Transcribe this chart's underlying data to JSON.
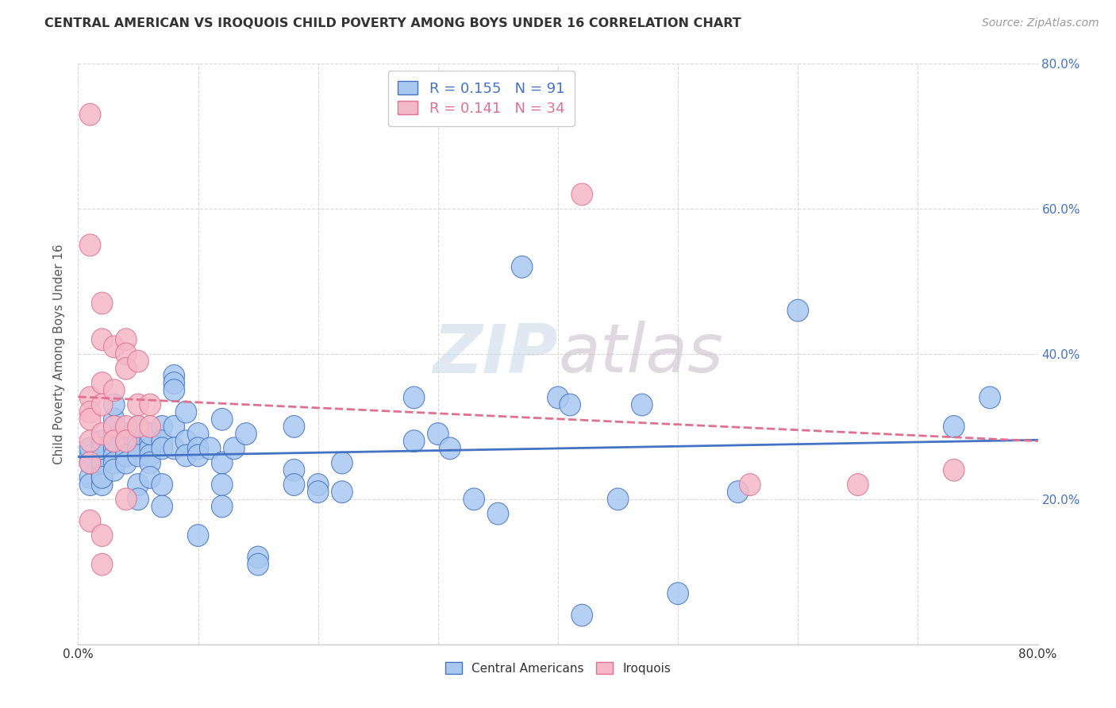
{
  "title": "CENTRAL AMERICAN VS IROQUOIS CHILD POVERTY AMONG BOYS UNDER 16 CORRELATION CHART",
  "source": "Source: ZipAtlas.com",
  "ylabel": "Child Poverty Among Boys Under 16",
  "xlim": [
    0.0,
    0.8
  ],
  "ylim": [
    0.0,
    0.8
  ],
  "xticks": [
    0.0,
    0.1,
    0.2,
    0.3,
    0.4,
    0.5,
    0.6,
    0.7,
    0.8
  ],
  "yticks": [
    0.0,
    0.2,
    0.4,
    0.6,
    0.8
  ],
  "xtick_labels": [
    "0.0%",
    "",
    "",
    "",
    "",
    "",
    "",
    "",
    "80.0%"
  ],
  "ytick_labels_left": [
    "",
    "",
    "",
    "",
    ""
  ],
  "ytick_labels_right": [
    "",
    "20.0%",
    "40.0%",
    "60.0%",
    "80.0%"
  ],
  "background_color": "#ffffff",
  "grid_color": "#d8d8d8",
  "watermark": "ZIPatlas",
  "color_blue": "#a8c8f0",
  "color_pink": "#f5b8c8",
  "line_color_blue": "#4472C4",
  "line_color_pink": "#E07090",
  "tick_color_right": "#4472C4",
  "central_americans": [
    [
      0.01,
      0.26
    ],
    [
      0.01,
      0.23
    ],
    [
      0.01,
      0.22
    ],
    [
      0.01,
      0.27
    ],
    [
      0.01,
      0.25
    ],
    [
      0.02,
      0.28
    ],
    [
      0.02,
      0.24
    ],
    [
      0.02,
      0.23
    ],
    [
      0.02,
      0.26
    ],
    [
      0.02,
      0.25
    ],
    [
      0.02,
      0.27
    ],
    [
      0.02,
      0.22
    ],
    [
      0.02,
      0.23
    ],
    [
      0.03,
      0.29
    ],
    [
      0.03,
      0.27
    ],
    [
      0.03,
      0.26
    ],
    [
      0.03,
      0.25
    ],
    [
      0.03,
      0.24
    ],
    [
      0.03,
      0.28
    ],
    [
      0.03,
      0.3
    ],
    [
      0.03,
      0.31
    ],
    [
      0.03,
      0.33
    ],
    [
      0.04,
      0.27
    ],
    [
      0.04,
      0.29
    ],
    [
      0.04,
      0.26
    ],
    [
      0.04,
      0.28
    ],
    [
      0.04,
      0.27
    ],
    [
      0.04,
      0.26
    ],
    [
      0.04,
      0.25
    ],
    [
      0.05,
      0.29
    ],
    [
      0.05,
      0.28
    ],
    [
      0.05,
      0.27
    ],
    [
      0.05,
      0.26
    ],
    [
      0.05,
      0.3
    ],
    [
      0.05,
      0.22
    ],
    [
      0.05,
      0.2
    ],
    [
      0.06,
      0.28
    ],
    [
      0.06,
      0.27
    ],
    [
      0.06,
      0.26
    ],
    [
      0.06,
      0.29
    ],
    [
      0.06,
      0.25
    ],
    [
      0.06,
      0.23
    ],
    [
      0.07,
      0.3
    ],
    [
      0.07,
      0.28
    ],
    [
      0.07,
      0.27
    ],
    [
      0.07,
      0.22
    ],
    [
      0.07,
      0.19
    ],
    [
      0.08,
      0.37
    ],
    [
      0.08,
      0.36
    ],
    [
      0.08,
      0.35
    ],
    [
      0.08,
      0.3
    ],
    [
      0.08,
      0.27
    ],
    [
      0.09,
      0.32
    ],
    [
      0.09,
      0.28
    ],
    [
      0.09,
      0.26
    ],
    [
      0.1,
      0.29
    ],
    [
      0.1,
      0.27
    ],
    [
      0.1,
      0.26
    ],
    [
      0.1,
      0.15
    ],
    [
      0.11,
      0.27
    ],
    [
      0.12,
      0.31
    ],
    [
      0.12,
      0.25
    ],
    [
      0.12,
      0.22
    ],
    [
      0.12,
      0.19
    ],
    [
      0.13,
      0.27
    ],
    [
      0.14,
      0.29
    ],
    [
      0.15,
      0.12
    ],
    [
      0.15,
      0.11
    ],
    [
      0.18,
      0.3
    ],
    [
      0.18,
      0.24
    ],
    [
      0.18,
      0.22
    ],
    [
      0.2,
      0.22
    ],
    [
      0.2,
      0.21
    ],
    [
      0.22,
      0.25
    ],
    [
      0.22,
      0.21
    ],
    [
      0.28,
      0.34
    ],
    [
      0.28,
      0.28
    ],
    [
      0.3,
      0.29
    ],
    [
      0.31,
      0.27
    ],
    [
      0.33,
      0.2
    ],
    [
      0.35,
      0.18
    ],
    [
      0.37,
      0.52
    ],
    [
      0.4,
      0.34
    ],
    [
      0.41,
      0.33
    ],
    [
      0.42,
      0.04
    ],
    [
      0.45,
      0.2
    ],
    [
      0.47,
      0.33
    ],
    [
      0.5,
      0.07
    ],
    [
      0.55,
      0.21
    ],
    [
      0.6,
      0.46
    ],
    [
      0.73,
      0.3
    ],
    [
      0.76,
      0.34
    ]
  ],
  "iroquois": [
    [
      0.01,
      0.73
    ],
    [
      0.01,
      0.55
    ],
    [
      0.01,
      0.34
    ],
    [
      0.01,
      0.32
    ],
    [
      0.01,
      0.31
    ],
    [
      0.01,
      0.28
    ],
    [
      0.01,
      0.25
    ],
    [
      0.01,
      0.17
    ],
    [
      0.02,
      0.47
    ],
    [
      0.02,
      0.42
    ],
    [
      0.02,
      0.36
    ],
    [
      0.02,
      0.33
    ],
    [
      0.02,
      0.29
    ],
    [
      0.02,
      0.15
    ],
    [
      0.02,
      0.11
    ],
    [
      0.03,
      0.41
    ],
    [
      0.03,
      0.35
    ],
    [
      0.03,
      0.3
    ],
    [
      0.03,
      0.28
    ],
    [
      0.04,
      0.42
    ],
    [
      0.04,
      0.4
    ],
    [
      0.04,
      0.38
    ],
    [
      0.04,
      0.3
    ],
    [
      0.04,
      0.28
    ],
    [
      0.04,
      0.2
    ],
    [
      0.05,
      0.39
    ],
    [
      0.05,
      0.33
    ],
    [
      0.05,
      0.3
    ],
    [
      0.06,
      0.33
    ],
    [
      0.06,
      0.3
    ],
    [
      0.42,
      0.62
    ],
    [
      0.56,
      0.22
    ],
    [
      0.65,
      0.22
    ],
    [
      0.73,
      0.24
    ]
  ]
}
